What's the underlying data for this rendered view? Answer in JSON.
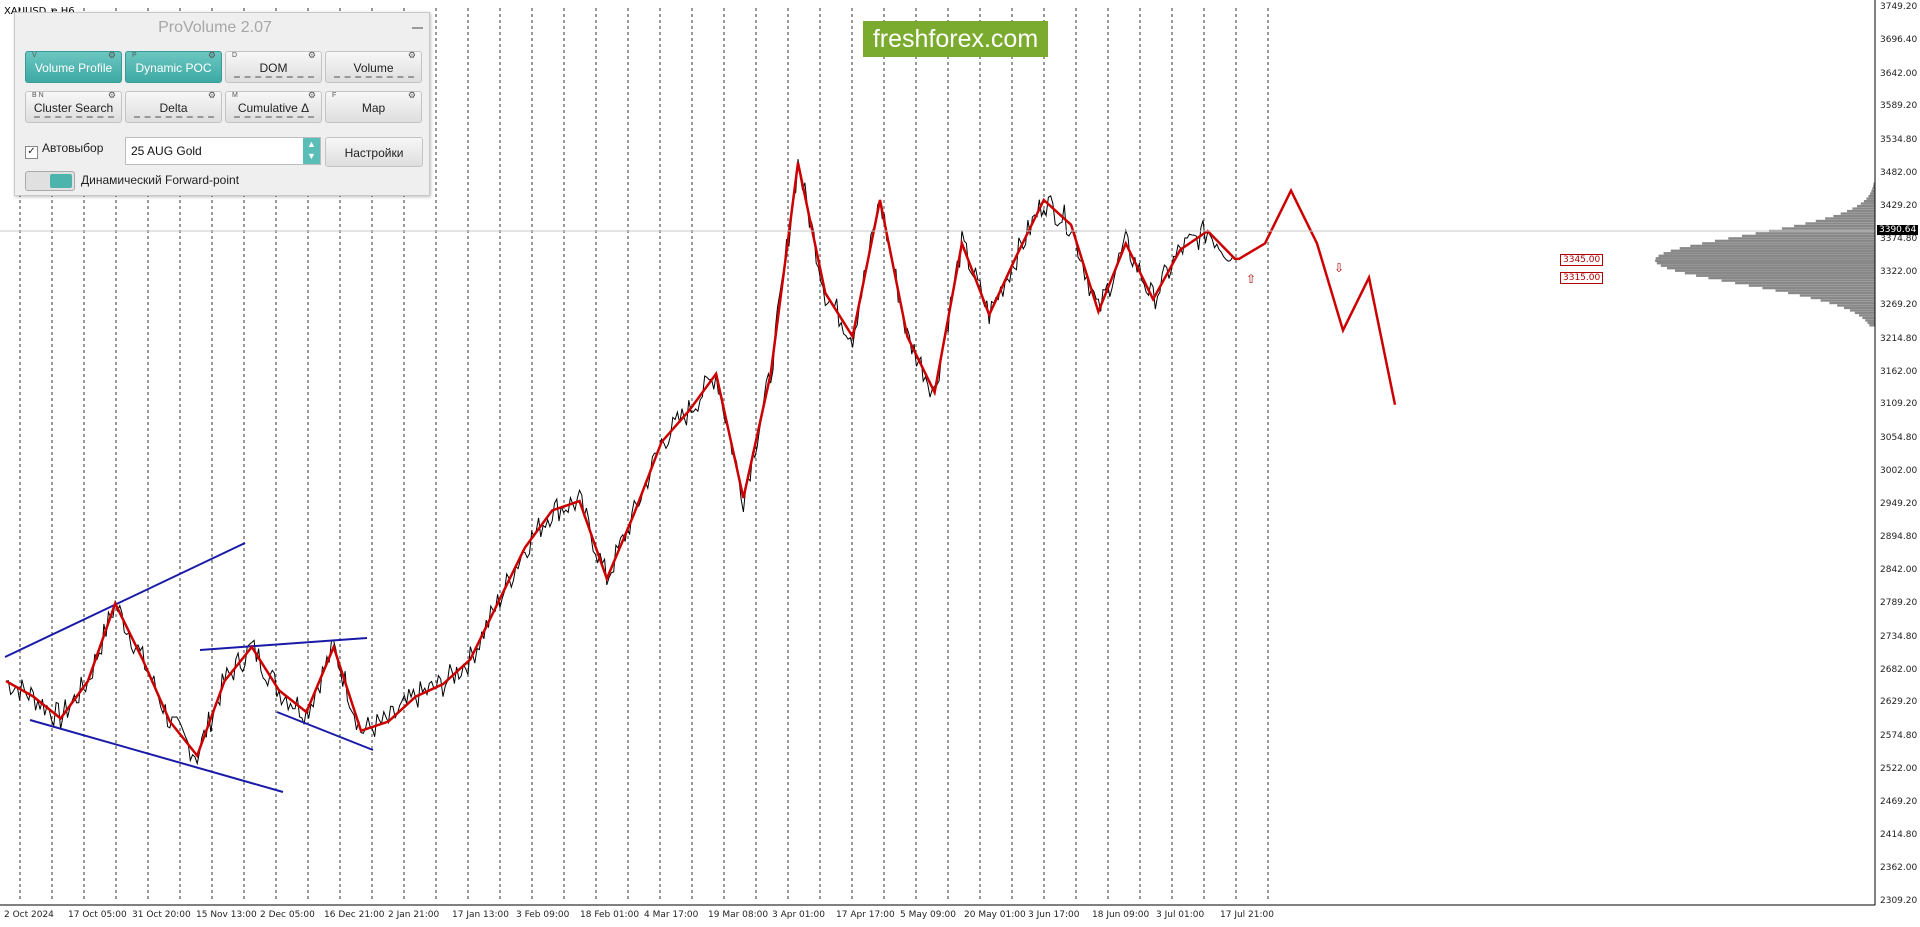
{
  "symbol": "XAUUSD_e,H6",
  "brand": "freshforex.com",
  "panel": {
    "title": "ProVolume 2.07",
    "buttons": [
      {
        "label": "Volume Profile",
        "key": "V",
        "active": true
      },
      {
        "label": "Dynamic POC",
        "key": "P",
        "active": true
      },
      {
        "label": "DOM",
        "key": "D",
        "active": false
      },
      {
        "label": "Volume",
        "key": "",
        "active": false
      },
      {
        "label": "Cluster Search",
        "key": "B N",
        "active": false
      },
      {
        "label": "Delta",
        "key": "",
        "active": false
      },
      {
        "label": "Cumulative Δ",
        "key": "M",
        "active": false
      },
      {
        "label": "Map",
        "key": "F",
        "active": false
      }
    ],
    "auto_select_label": "Автовыбор",
    "auto_select_checked": true,
    "instrument_value": "25 AUG Gold",
    "settings_label": "Настройки",
    "forward_point_label": "Динамический Forward-point"
  },
  "price_axis": {
    "ticks": [
      "3749.20",
      "3696.40",
      "3642.00",
      "3589.20",
      "3534.80",
      "3482.00",
      "3429.20",
      "3374.80",
      "3322.00",
      "3269.20",
      "3214.80",
      "3162.00",
      "3109.20",
      "3054.80",
      "3002.00",
      "2949.20",
      "2894.80",
      "2842.00",
      "2789.20",
      "2734.80",
      "2682.00",
      "2629.20",
      "2574.80",
      "2522.00",
      "2469.20",
      "2414.80",
      "2362.00",
      "2309.20"
    ],
    "current_price": "3390.64"
  },
  "time_axis": {
    "labels": [
      "2 Oct 2024",
      "17 Oct 05:00",
      "31 Oct 20:00",
      "15 Nov 13:00",
      "2 Dec 05:00",
      "16 Dec 21:00",
      "2 Jan 21:00",
      "17 Jan 13:00",
      "3 Feb 09:00",
      "18 Feb 01:00",
      "4 Mar 17:00",
      "19 Mar 08:00",
      "3 Apr 01:00",
      "17 Apr 17:00",
      "5 May 09:00",
      "20 May 01:00",
      "3 Jun 17:00",
      "18 Jun 09:00",
      "3 Jul 01:00",
      "17 Jul 21:00"
    ]
  },
  "levels": [
    "3345.00",
    "3315.00"
  ],
  "colors": {
    "zigzag": "#cc0000",
    "channel": "#1a1aa8",
    "price": "#000000",
    "profile": "#888888",
    "accent": "#4db3ad",
    "brand": "#7aab2e"
  },
  "chart_data": {
    "type": "line",
    "series": [
      {
        "values": [
          2665,
          2640,
          2605,
          2665,
          2790,
          2700,
          2600,
          2545,
          2665,
          2720,
          2650,
          2615,
          2720,
          2585,
          2600,
          2640,
          2660,
          2700,
          2790,
          2880,
          2940,
          2955,
          2830,
          2935,
          3050,
          3100,
          3160,
          2960,
          3160,
          3500,
          3290,
          3220,
          3440,
          3220,
          3130,
          3370,
          3255,
          3350,
          3440,
          3400,
          3260,
          3370,
          3280,
          3360,
          3390,
          3345
        ]
      }
    ],
    "projection": [
      3345,
      3370,
      3455,
      3370,
      3230,
      3315,
      3110
    ],
    "ylim": [
      2309.2,
      3749.2
    ],
    "volume_profile_peak": 3345.0
  }
}
